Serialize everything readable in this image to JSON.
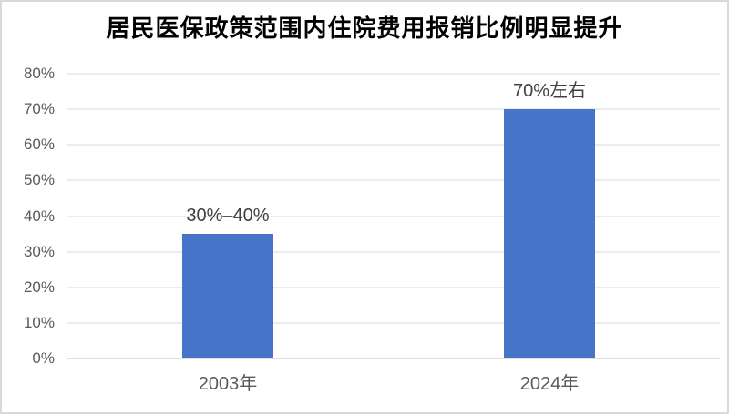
{
  "chart_data": {
    "type": "bar",
    "title": "居民医保政策范围内住院费用报销比例明显提升",
    "categories": [
      "2003年",
      "2024年"
    ],
    "values": [
      35,
      70
    ],
    "data_labels": [
      "30%–40%",
      "70%左右"
    ],
    "xlabel": "",
    "ylabel": "",
    "ylim": [
      0,
      80
    ],
    "ytick_labels": [
      "0%",
      "10%",
      "20%",
      "30%",
      "40%",
      "50%",
      "60%",
      "70%",
      "80%"
    ],
    "grid": true,
    "legend": false,
    "bar_color": "#4674c8",
    "gridline_color": "#ececec",
    "axis_line_color": "#dedede",
    "tick_label_color": "#595959",
    "data_label_color": "#404040",
    "title_color": "#000000",
    "frame_border_color": "#d9d9d9"
  }
}
